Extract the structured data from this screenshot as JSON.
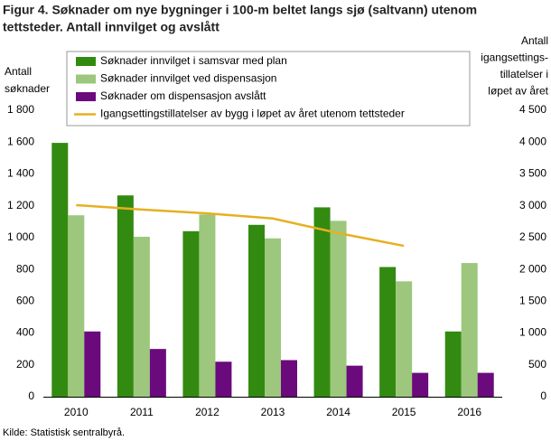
{
  "chart_data": {
    "type": "bar",
    "title": "Figur 4. Søknader om nye bygninger i 100-m beltet langs sjø (saltvann) utenom tettsteder. Antall innvilget og avslått",
    "title_lines": [
      "Figur 4. Søknader om nye bygninger i 100-m beltet langs sjø (saltvann) utenom",
      "tettsteder. Antall innvilget og avslått"
    ],
    "y_label_lines": [
      "Antall",
      "søknader"
    ],
    "y2_label_lines": [
      "Antall",
      "igangsettings-",
      "tillatelser  i",
      "løpet av året"
    ],
    "source": "Kilde: Statistisk sentralbyrå.",
    "categories": [
      "2010",
      "2011",
      "2012",
      "2013",
      "2014",
      "2015",
      "2016"
    ],
    "series": [
      {
        "name": "Søknader innvilget i samsvar med plan",
        "color": "#338a10",
        "values": [
          1595,
          1265,
          1040,
          1080,
          1190,
          815,
          410
        ]
      },
      {
        "name": "Søknader innvilget ved dispensasjon",
        "color": "#9cc77c",
        "values": [
          1140,
          1005,
          1145,
          995,
          1105,
          725,
          840
        ]
      },
      {
        "name": "Søknader om dispensasjon avslått",
        "color": "#6a0a7c",
        "values": [
          410,
          300,
          220,
          230,
          195,
          150,
          150
        ]
      },
      {
        "name": "Igangsettingstillatelser av bygg i løpet av året utenom tettsteder",
        "color": "#e6b021",
        "type": "line",
        "axis": "y2",
        "values": [
          3010,
          2940,
          2880,
          2800,
          2570,
          2370,
          null
        ]
      }
    ],
    "ylim": [
      0,
      1800
    ],
    "yticks": [
      0,
      200,
      400,
      600,
      800,
      {
        "value": 1000,
        "label": "1 000"
      },
      {
        "value": 1200,
        "label": "1 200"
      },
      {
        "value": 1400,
        "label": "1 400"
      },
      {
        "value": 1600,
        "label": "1 600"
      },
      {
        "value": 1800,
        "label": "1 800"
      }
    ],
    "y2lim": [
      0,
      4500
    ],
    "y2ticks": [
      0,
      500,
      {
        "value": 1000,
        "label": "1 000"
      },
      {
        "value": 1500,
        "label": "1 500"
      },
      {
        "value": 2000,
        "label": "2 000"
      },
      {
        "value": 2500,
        "label": "2 500"
      },
      {
        "value": 3000,
        "label": "3 000"
      },
      {
        "value": 3500,
        "label": "3 500"
      },
      {
        "value": 4000,
        "label": "4 000"
      },
      {
        "value": 4500,
        "label": "4 500"
      }
    ],
    "grid": false
  }
}
